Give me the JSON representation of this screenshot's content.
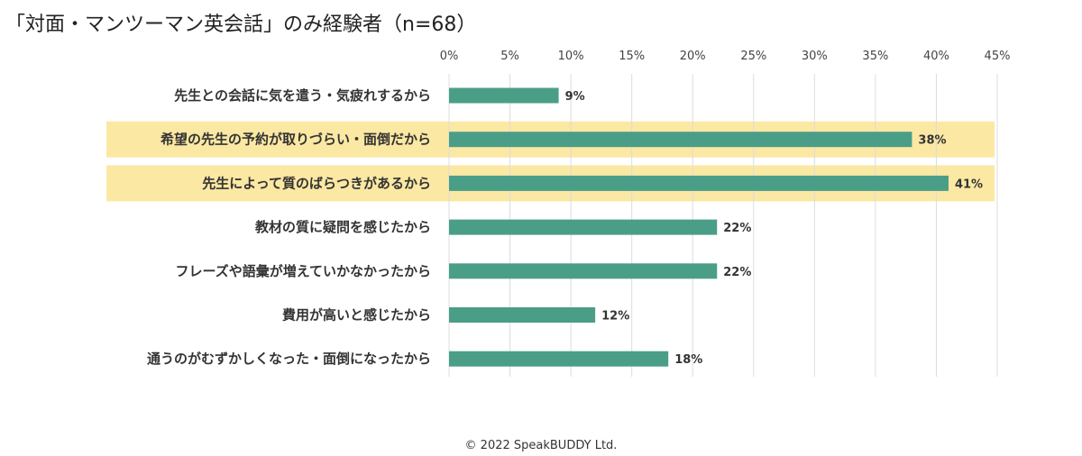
{
  "chart_data": {
    "type": "bar",
    "orientation": "horizontal",
    "title": "「対面・マンツーマン英会話」のみ経験者（n=68）",
    "categories": [
      "先生との会話に気を遣う・気疲れするから",
      "希望の先生の予約が取りづらい・面倒だから",
      "先生によって質のばらつきがあるから",
      "教材の質に疑問を感じたから",
      "フレーズや語彙が増えていかなかったから",
      "費用が高いと感じたから",
      "通うのがむずかしくなった・面倒になったから"
    ],
    "values": [
      9,
      38,
      41,
      22,
      22,
      12,
      18
    ],
    "value_labels": [
      "9%",
      "38%",
      "41%",
      "22%",
      "22%",
      "12%",
      "18%"
    ],
    "highlighted": [
      false,
      true,
      true,
      false,
      false,
      false,
      false
    ],
    "xlim": [
      0,
      45
    ],
    "xticks": [
      "0%",
      "5%",
      "10%",
      "15%",
      "20%",
      "25%",
      "30%",
      "35%",
      "40%",
      "45%"
    ],
    "grid": true,
    "legend": "none",
    "colors": {
      "bar": "#4a9e87",
      "highlight": "#fbe8a3",
      "grid": "#dcdcdc"
    }
  },
  "footer": {
    "copyright": "© 2022 SpeakBUDDY Ltd."
  }
}
